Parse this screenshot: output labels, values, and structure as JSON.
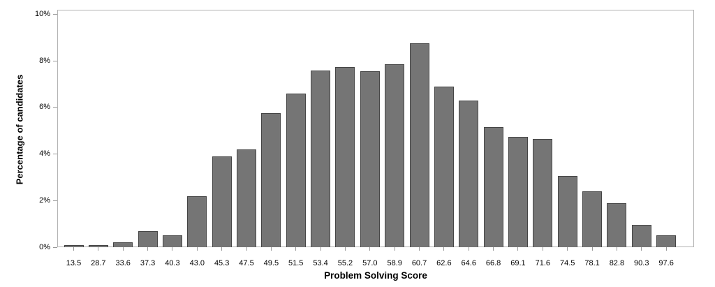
{
  "chart_data": {
    "type": "bar",
    "title": "",
    "xlabel": "Problem Solving Score",
    "ylabel": "Percentage of candidates",
    "categories": [
      "13.5",
      "28.7",
      "33.6",
      "37.3",
      "40.3",
      "43.0",
      "45.3",
      "47.5",
      "49.5",
      "51.5",
      "53.4",
      "55.2",
      "57.0",
      "58.9",
      "60.7",
      "62.6",
      "64.6",
      "66.8",
      "69.1",
      "71.6",
      "74.5",
      "78.1",
      "82.8",
      "90.3",
      "97.6"
    ],
    "values": [
      0.1,
      0.1,
      0.2,
      0.7,
      0.5,
      2.2,
      3.9,
      4.2,
      5.75,
      6.6,
      7.6,
      7.75,
      7.55,
      7.85,
      8.75,
      6.9,
      6.3,
      5.15,
      4.75,
      4.65,
      3.05,
      2.4,
      1.9,
      0.95,
      0.5
    ],
    "ylim": [
      0,
      10
    ],
    "yticks": [
      0,
      2,
      4,
      6,
      8,
      10
    ],
    "ytick_labels": [
      "0%",
      "2%",
      "4%",
      "6%",
      "8%",
      "10%"
    ],
    "grid": false,
    "legend": null,
    "bar_fill": "#757575",
    "bar_border": "#454545",
    "axis_color": "#b3b3b3",
    "tick_color": "#999999",
    "text_color": "#000000"
  }
}
